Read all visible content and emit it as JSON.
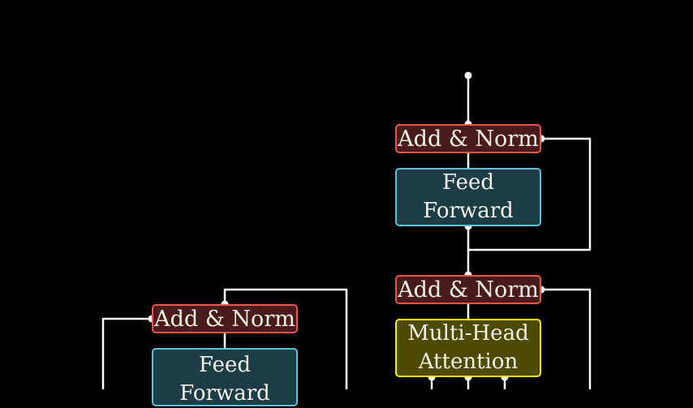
{
  "blocks": {
    "right_top_add_norm": "Add & Norm",
    "right_feed_forward": [
      "Feed",
      "Forward"
    ],
    "right_mid_add_norm": "Add & Norm",
    "right_multi_head_attention": [
      "Multi-Head",
      "Attention"
    ],
    "left_add_norm": "Add & Norm",
    "left_feed_forward": [
      "Feed",
      "Forward"
    ]
  },
  "colors": {
    "background": "#000000",
    "add_norm_fill": "#4a1b1b",
    "add_norm_border": "#e8574a",
    "feed_forward_fill": "#1d3d46",
    "feed_forward_border": "#5fc1d9",
    "attention_fill": "#4d4b00",
    "attention_border": "#f2f000",
    "connector": "#ffffff"
  }
}
